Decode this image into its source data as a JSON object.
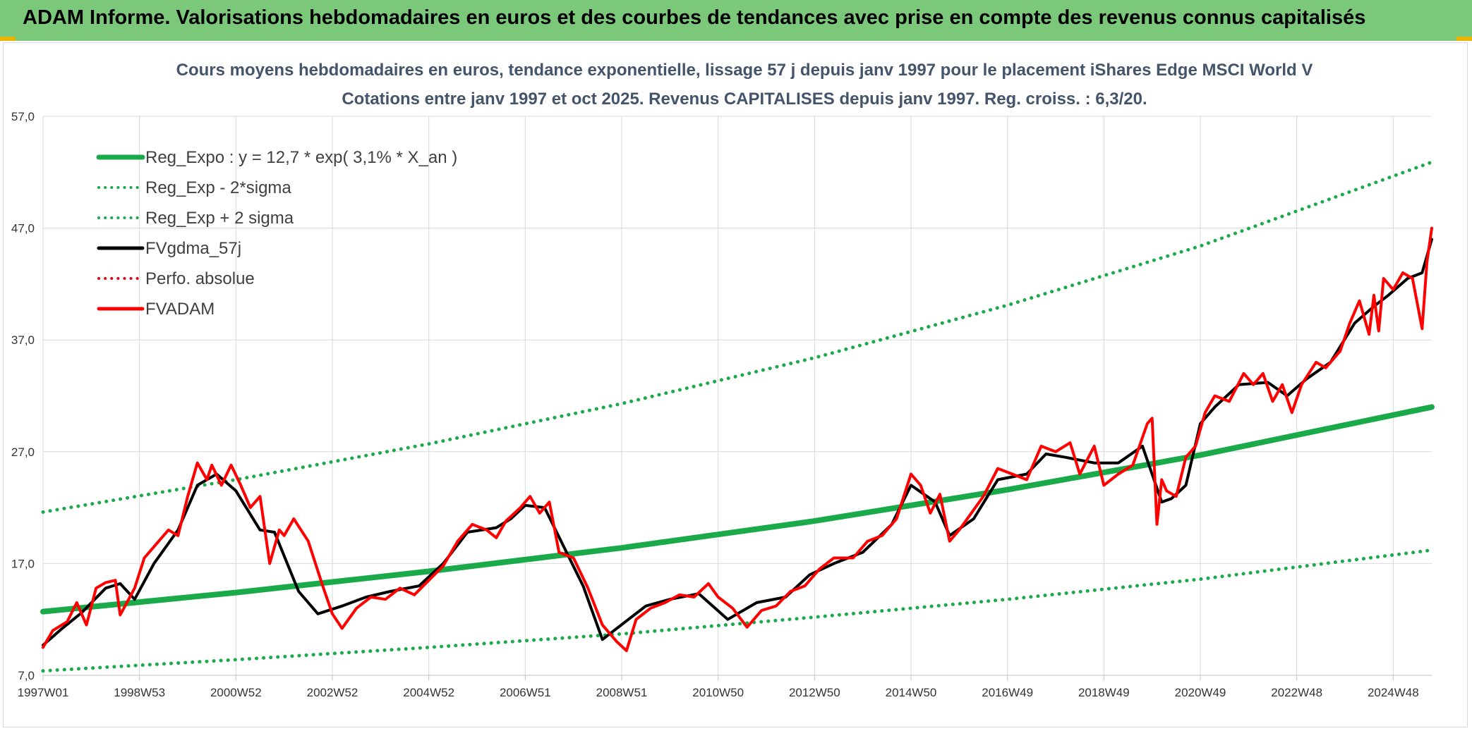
{
  "header": {
    "title": "ADAM Informe. Valorisations hebdomadaires en euros et des courbes de tendances avec prise en compte des revenus connus capitalisés"
  },
  "chart_data": {
    "type": "line",
    "title": "Cours moyens hebdomadaires en euros, tendance exponentielle, lissage 57 j depuis janv 1997 pour le placement iShares Edge MSCI World V",
    "subtitle": "Cotations entre janv 1997 et oct 2025. Revenus CAPITALISES depuis janv 1997. Reg. croiss. : 6,3/20.",
    "xlabel": "",
    "ylabel": "",
    "x_range": [
      1997.0,
      2025.8
    ],
    "ylim": [
      7,
      57
    ],
    "y_ticks": [
      "7,0",
      "17,0",
      "27,0",
      "37,0",
      "47,0",
      "57,0"
    ],
    "y_tick_values": [
      7,
      17,
      27,
      37,
      47,
      57
    ],
    "x_tick_labels": [
      "1997W01",
      "1998W53",
      "2000W52",
      "2002W52",
      "2004W52",
      "2006W51",
      "2008W51",
      "2010W50",
      "2012W50",
      "2014W50",
      "2016W49",
      "2018W49",
      "2020W49",
      "2022W48",
      "2024W48"
    ],
    "x_tick_values": [
      1997.0,
      1999.0,
      2001.0,
      2003.0,
      2005.0,
      2007.0,
      2009.0,
      2011.0,
      2013.0,
      2015.0,
      2017.0,
      2019.0,
      2021.0,
      2023.0,
      2025.0
    ],
    "grid": "horizontal and vertical",
    "legend_position": "top-left",
    "series": [
      {
        "name": "Reg_Expo : y = 12,7 * exp( 3,1% *  X_an )",
        "color": "#1aaa4a",
        "style": "solid",
        "x": [
          1997.0,
          2001.0,
          2005.0,
          2009.0,
          2013.0,
          2017.0,
          2021.0,
          2025.8
        ],
        "values": [
          12.7,
          14.4,
          16.3,
          18.4,
          20.8,
          23.6,
          26.7,
          31.0
        ]
      },
      {
        "name": "Reg_Exp - 2*sigma",
        "color": "#1aaa4a",
        "style": "dotted",
        "x": [
          1997.0,
          2001.0,
          2005.0,
          2009.0,
          2013.0,
          2017.0,
          2021.0,
          2025.8
        ],
        "values": [
          7.4,
          8.4,
          9.5,
          10.7,
          12.2,
          13.8,
          15.6,
          18.2
        ]
      },
      {
        "name": "Reg_Exp + 2 sigma",
        "color": "#1aaa4a",
        "style": "dotted",
        "x": [
          1997.0,
          2001.0,
          2005.0,
          2009.0,
          2013.0,
          2017.0,
          2021.0,
          2025.8
        ],
        "values": [
          21.6,
          24.5,
          27.7,
          31.3,
          35.4,
          40.1,
          45.4,
          52.9
        ]
      },
      {
        "name": "FVgdma_57j",
        "color": "#000000",
        "style": "solid",
        "x": [
          1997.0,
          1997.4,
          1997.8,
          1998.3,
          1998.6,
          1998.9,
          1999.3,
          1999.8,
          2000.2,
          2000.6,
          2001.0,
          2001.5,
          2001.8,
          2002.3,
          2002.7,
          2003.2,
          2003.7,
          2004.2,
          2004.8,
          2005.3,
          2005.8,
          2006.4,
          2006.7,
          2007.0,
          2007.4,
          2007.8,
          2008.2,
          2008.6,
          2009.2,
          2009.5,
          2010.0,
          2010.6,
          2011.2,
          2011.8,
          2012.4,
          2012.9,
          2013.4,
          2014.0,
          2014.6,
          2015.0,
          2015.5,
          2015.8,
          2016.3,
          2016.8,
          2017.4,
          2017.8,
          2018.2,
          2018.8,
          2019.3,
          2019.8,
          2020.2,
          2020.4,
          2020.7,
          2021.0,
          2021.3,
          2021.8,
          2022.4,
          2022.8,
          2023.2,
          2023.7,
          2024.2,
          2024.6,
          2024.9,
          2025.3,
          2025.6,
          2025.8
        ],
        "values": [
          9.7,
          11.2,
          12.6,
          14.8,
          15.2,
          13.8,
          17.0,
          20.0,
          24.0,
          25.0,
          23.5,
          20.0,
          19.8,
          14.5,
          12.5,
          13.2,
          14.0,
          14.5,
          15.0,
          17.0,
          19.8,
          20.2,
          21.0,
          22.2,
          22.0,
          18.5,
          15.0,
          10.2,
          12.2,
          13.2,
          13.8,
          14.3,
          12.0,
          13.5,
          14.0,
          16.0,
          17.0,
          18.0,
          20.5,
          24.0,
          22.5,
          19.5,
          21.0,
          24.5,
          25.0,
          26.8,
          26.5,
          26.0,
          26.0,
          27.5,
          22.5,
          22.8,
          24.0,
          29.5,
          31.0,
          33.0,
          33.2,
          32.0,
          33.5,
          35.0,
          38.5,
          40.0,
          41.0,
          42.5,
          43.0,
          46.0
        ]
      },
      {
        "name": "Perfo. absolue",
        "color": "#e30613",
        "style": "dotted",
        "x": [],
        "values": []
      },
      {
        "name": "FVADAM",
        "color": "#ff0000",
        "style": "solid",
        "x": [
          1997.0,
          1997.2,
          1997.5,
          1997.7,
          1997.9,
          1998.1,
          1998.3,
          1998.5,
          1998.6,
          1998.8,
          1998.9,
          1999.1,
          1999.3,
          1999.6,
          1999.8,
          2000.0,
          2000.2,
          2000.4,
          2000.5,
          2000.7,
          2000.9,
          2001.1,
          2001.3,
          2001.5,
          2001.7,
          2001.9,
          2002.0,
          2002.2,
          2002.5,
          2002.8,
          2003.0,
          2003.2,
          2003.5,
          2003.8,
          2004.1,
          2004.4,
          2004.7,
          2005.0,
          2005.3,
          2005.6,
          2005.9,
          2006.2,
          2006.4,
          2006.6,
          2006.9,
          2007.1,
          2007.3,
          2007.5,
          2007.7,
          2008.0,
          2008.3,
          2008.6,
          2008.9,
          2009.1,
          2009.3,
          2009.6,
          2009.9,
          2010.2,
          2010.5,
          2010.8,
          2011.0,
          2011.3,
          2011.6,
          2011.9,
          2012.2,
          2012.5,
          2012.8,
          2013.1,
          2013.4,
          2013.8,
          2014.1,
          2014.4,
          2014.7,
          2015.0,
          2015.2,
          2015.4,
          2015.6,
          2015.8,
          2016.0,
          2016.2,
          2016.5,
          2016.8,
          2017.1,
          2017.4,
          2017.7,
          2018.0,
          2018.3,
          2018.5,
          2018.8,
          2019.0,
          2019.3,
          2019.6,
          2019.9,
          2020.0,
          2020.1,
          2020.2,
          2020.3,
          2020.5,
          2020.7,
          2020.9,
          2021.1,
          2021.3,
          2021.6,
          2021.9,
          2022.1,
          2022.3,
          2022.5,
          2022.7,
          2022.9,
          2023.1,
          2023.4,
          2023.6,
          2023.9,
          2024.1,
          2024.3,
          2024.5,
          2024.6,
          2024.7,
          2024.8,
          2025.0,
          2025.2,
          2025.4,
          2025.6,
          2025.7,
          2025.8
        ],
        "values": [
          9.5,
          11.0,
          11.8,
          13.5,
          11.5,
          14.8,
          15.3,
          15.5,
          12.4,
          14.0,
          14.8,
          17.5,
          18.5,
          20.0,
          19.5,
          23.0,
          26.0,
          24.5,
          25.8,
          24.0,
          25.8,
          24.0,
          22.0,
          23.0,
          17.0,
          20.0,
          19.5,
          21.0,
          19.0,
          15.0,
          12.5,
          11.2,
          13.0,
          14.0,
          13.8,
          14.8,
          14.2,
          15.5,
          16.8,
          19.0,
          20.5,
          20.0,
          19.3,
          20.8,
          22.0,
          23.0,
          21.5,
          22.5,
          18.0,
          17.5,
          14.8,
          11.5,
          10.0,
          9.2,
          12.0,
          13.0,
          13.5,
          14.2,
          14.0,
          15.2,
          14.0,
          13.0,
          11.3,
          12.8,
          13.2,
          14.5,
          15.0,
          16.5,
          17.5,
          17.5,
          19.0,
          19.5,
          21.0,
          25.0,
          24.0,
          21.5,
          23.2,
          19.0,
          20.0,
          21.2,
          23.0,
          25.5,
          25.0,
          24.5,
          27.5,
          27.0,
          27.8,
          25.0,
          27.5,
          24.0,
          25.0,
          25.8,
          29.5,
          30.0,
          20.5,
          24.5,
          23.5,
          23.0,
          26.5,
          27.5,
          30.5,
          32.0,
          31.5,
          34.0,
          33.0,
          34.0,
          31.5,
          33.0,
          30.5,
          33.0,
          35.0,
          34.5,
          36.0,
          38.5,
          40.5,
          37.5,
          41.0,
          37.8,
          42.5,
          41.5,
          43.0,
          42.5,
          38.0,
          44.0,
          47.0
        ]
      }
    ]
  }
}
